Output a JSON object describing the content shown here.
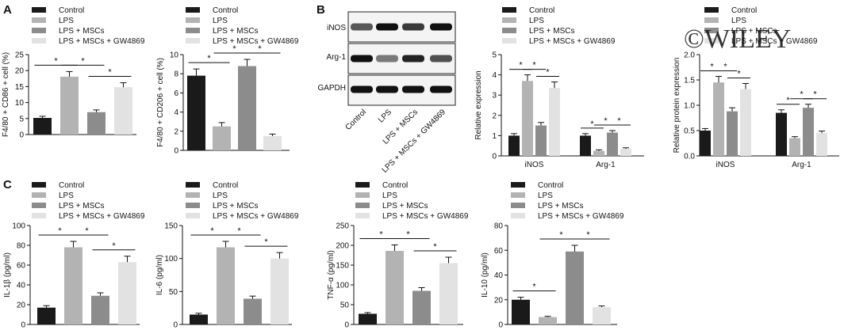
{
  "watermark": "©WILEY",
  "colors": {
    "Control": "#1a1a1a",
    "LPS": "#b3b3b3",
    "LPS + MSCs": "#8c8c8c",
    "LPS + MSCs + GW4869": "#e2e2e2"
  },
  "groups": [
    "Control",
    "LPS",
    "LPS + MSCs",
    "LPS + MSCs + GW4869"
  ],
  "significance_mark": "*",
  "panels": {
    "A": {
      "letter": "A"
    },
    "B": {
      "letter": "B",
      "blot_labels": [
        "iNOS",
        "Arg-1",
        "GAPDH"
      ],
      "lane_labels": [
        "Control",
        "LPS",
        "LPS + MSCs",
        "LPS + MSCs + GW4869"
      ]
    },
    "C": {
      "letter": "C"
    }
  },
  "chart_data": [
    {
      "id": "A1",
      "type": "bar",
      "categories": [
        "Control",
        "LPS",
        "LPS + MSCs",
        "LPS + MSCs + GW4869"
      ],
      "values": [
        5.2,
        18.1,
        7.0,
        14.8
      ],
      "errors": [
        0.5,
        1.6,
        0.7,
        1.4
      ],
      "ylabel": "F4/80 + CD86 + cell (%)",
      "ylim": [
        0,
        25
      ],
      "yticks": [
        0,
        5,
        10,
        15,
        20,
        25
      ],
      "significance": [
        [
          0,
          1
        ],
        [
          1,
          2
        ],
        [
          2,
          3
        ]
      ]
    },
    {
      "id": "A2",
      "type": "bar",
      "categories": [
        "Control",
        "LPS",
        "LPS + MSCs",
        "LPS + MSCs + GW4869"
      ],
      "values": [
        7.8,
        2.5,
        8.8,
        1.5
      ],
      "errors": [
        0.7,
        0.4,
        0.7,
        0.2
      ],
      "ylabel": "F4/80 + CD206 + cell (%)",
      "ylim": [
        0,
        10
      ],
      "yticks": [
        0,
        2,
        4,
        6,
        8,
        10
      ],
      "significance": [
        [
          0,
          1
        ],
        [
          1,
          2
        ],
        [
          2,
          3
        ]
      ]
    },
    {
      "id": "B1",
      "type": "bar",
      "categories": [
        "iNOS",
        "Arg-1"
      ],
      "series": [
        {
          "name": "Control",
          "values": [
            1.0,
            1.0
          ],
          "errors": [
            0.1,
            0.1
          ]
        },
        {
          "name": "LPS",
          "values": [
            3.7,
            0.25
          ],
          "errors": [
            0.3,
            0.05
          ]
        },
        {
          "name": "LPS + MSCs",
          "values": [
            1.5,
            1.15
          ],
          "errors": [
            0.15,
            0.1
          ]
        },
        {
          "name": "LPS + MSCs + GW4869",
          "values": [
            3.35,
            0.35
          ],
          "errors": [
            0.3,
            0.05
          ]
        }
      ],
      "ylabel": "Relative expression",
      "ylim": [
        0,
        5
      ],
      "yticks": [
        0,
        1,
        2,
        3,
        4,
        5
      ],
      "significance": [
        [
          0,
          1
        ],
        [
          1,
          2
        ],
        [
          2,
          3
        ]
      ]
    },
    {
      "id": "B2",
      "type": "bar",
      "categories": [
        "iNOS",
        "Arg-1"
      ],
      "series": [
        {
          "name": "Control",
          "values": [
            0.5,
            0.85
          ],
          "errors": [
            0.04,
            0.06
          ]
        },
        {
          "name": "LPS",
          "values": [
            1.45,
            0.35
          ],
          "errors": [
            0.12,
            0.03
          ]
        },
        {
          "name": "LPS + MSCs",
          "values": [
            0.88,
            0.95
          ],
          "errors": [
            0.07,
            0.07
          ]
        },
        {
          "name": "LPS + MSCs + GW4869",
          "values": [
            1.32,
            0.45
          ],
          "errors": [
            0.11,
            0.04
          ]
        }
      ],
      "ylabel": "Relative protein expression",
      "ylim": [
        0,
        2.0
      ],
      "yticks": [
        0.0,
        0.5,
        1.0,
        1.5,
        2.0
      ],
      "significance": [
        [
          0,
          1
        ],
        [
          1,
          2
        ],
        [
          2,
          3
        ]
      ]
    },
    {
      "id": "C1",
      "type": "bar",
      "categories": [
        "Control",
        "LPS",
        "LPS + MSCs",
        "LPS + MSCs + GW4869"
      ],
      "values": [
        17,
        78,
        29,
        63
      ],
      "errors": [
        2,
        6,
        3,
        6
      ],
      "ylabel": "IL-1β (pg/ml)",
      "ylim": [
        0,
        100
      ],
      "yticks": [
        0,
        20,
        40,
        60,
        80,
        100
      ],
      "significance": [
        [
          0,
          1
        ],
        [
          1,
          2
        ],
        [
          2,
          3
        ]
      ]
    },
    {
      "id": "C2",
      "type": "bar",
      "categories": [
        "Control",
        "LPS",
        "LPS + MSCs",
        "LPS + MSCs + GW4869"
      ],
      "values": [
        15,
        117,
        39,
        100
      ],
      "errors": [
        2,
        9,
        4,
        9
      ],
      "ylabel": "IL-6 (pg/ml)",
      "ylim": [
        0,
        150
      ],
      "yticks": [
        0,
        50,
        100,
        150
      ],
      "significance": [
        [
          0,
          1
        ],
        [
          1,
          2
        ],
        [
          2,
          3
        ]
      ]
    },
    {
      "id": "C3",
      "type": "bar",
      "categories": [
        "Control",
        "LPS",
        "LPS + MSCs",
        "LPS + MSCs + GW4869"
      ],
      "values": [
        27,
        186,
        85,
        155
      ],
      "errors": [
        3,
        15,
        8,
        15
      ],
      "ylabel": "TNF-α (pg/ml)",
      "ylim": [
        0,
        250
      ],
      "yticks": [
        0,
        50,
        100,
        150,
        200,
        250
      ],
      "significance": [
        [
          0,
          1
        ],
        [
          1,
          2
        ],
        [
          2,
          3
        ]
      ]
    },
    {
      "id": "C4",
      "type": "bar",
      "categories": [
        "Control",
        "LPS",
        "LPS + MSCs",
        "LPS + MSCs + GW4869"
      ],
      "values": [
        20,
        6,
        59,
        14
      ],
      "errors": [
        2,
        0.6,
        5,
        1
      ],
      "ylabel": "IL-10 (pg/ml)",
      "ylim": [
        0,
        80
      ],
      "yticks": [
        0,
        20,
        40,
        60,
        80
      ],
      "significance": [
        [
          0,
          1
        ],
        [
          1,
          2
        ],
        [
          2,
          3
        ]
      ]
    }
  ]
}
